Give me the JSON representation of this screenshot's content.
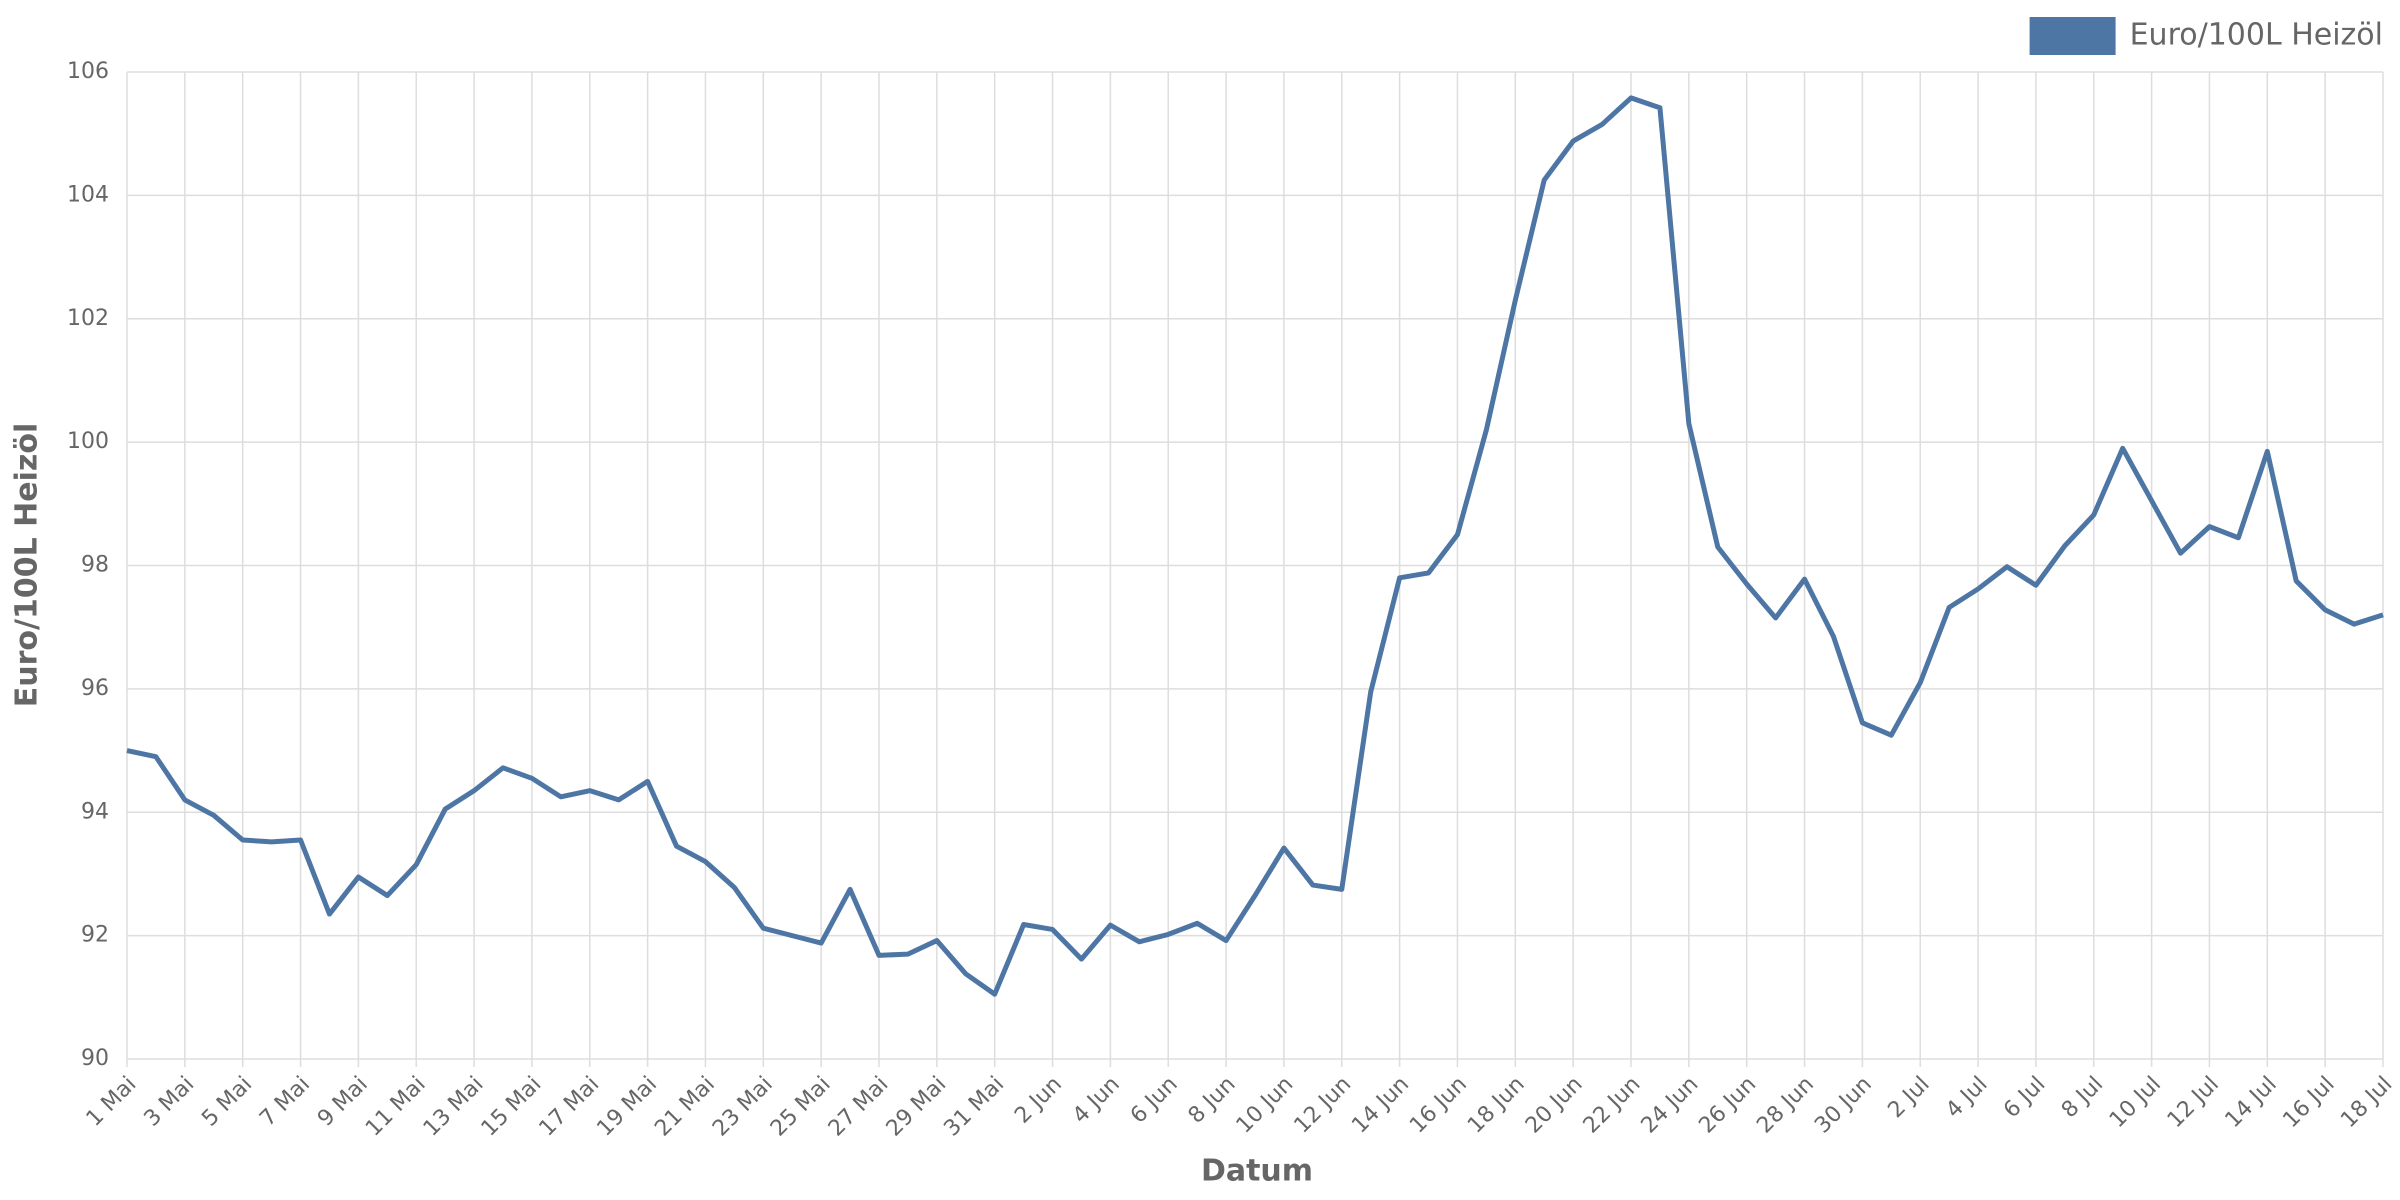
{
  "chart_data": {
    "type": "line",
    "x_label": "Datum",
    "y_label": "Euro/100L Heizöl",
    "categories": [
      "1 Mai",
      null,
      "3 Mai",
      null,
      "5 Mai",
      null,
      "7 Mai",
      null,
      "9 Mai",
      null,
      "11 Mai",
      null,
      "13 Mai",
      null,
      "15 Mai",
      null,
      "17 Mai",
      null,
      "19 Mai",
      null,
      "21 Mai",
      null,
      "23 Mai",
      null,
      "25 Mai",
      null,
      "27 Mai",
      null,
      "29 Mai",
      null,
      "31 Mai",
      null,
      "2 Jun",
      null,
      "4 Jun",
      null,
      "6 Jun",
      null,
      "8 Jun",
      null,
      "10 Jun",
      null,
      "12 Jun",
      null,
      "14 Jun",
      null,
      "16 Jun",
      null,
      "18 Jun",
      null,
      "20 Jun",
      null,
      "22 Jun",
      null,
      "24 Jun",
      null,
      "26 Jun",
      null,
      "28 Jun",
      null,
      "30 Jun",
      null,
      "2 Jul",
      null,
      "4 Jul",
      null,
      "6 Jul",
      null,
      "8 Jul",
      null,
      "10 Jul",
      null,
      "12 Jul",
      null,
      "14 Jul",
      null,
      "16 Jul",
      null,
      "18 Jul"
    ],
    "series": [
      {
        "name": "Euro/100L Heizöl",
        "color": "#4e76a5",
        "values": [
          95.0,
          94.9,
          94.2,
          93.95,
          93.55,
          93.52,
          93.55,
          92.35,
          92.95,
          92.65,
          93.15,
          94.05,
          94.35,
          94.72,
          94.55,
          94.25,
          94.35,
          94.2,
          94.5,
          93.45,
          93.2,
          92.78,
          92.12,
          92.0,
          91.88,
          92.75,
          91.68,
          91.7,
          91.92,
          91.38,
          91.05,
          92.18,
          92.1,
          91.62,
          92.17,
          91.9,
          92.02,
          92.2,
          91.92,
          92.65,
          93.42,
          92.82,
          92.75,
          95.95,
          97.8,
          97.88,
          98.5,
          100.2,
          102.3,
          104.25,
          104.88,
          105.15,
          105.58,
          105.42,
          100.3,
          98.3,
          97.7,
          97.15,
          97.78,
          96.85,
          95.45,
          95.25,
          96.1,
          97.32,
          97.62,
          97.98,
          97.68,
          98.32,
          98.82,
          99.9,
          99.05,
          98.2,
          98.63,
          98.45,
          99.85,
          97.75,
          97.28,
          97.05,
          97.2
        ]
      }
    ],
    "ylim": [
      90,
      106
    ],
    "yticks": [
      90,
      92,
      94,
      96,
      98,
      100,
      102,
      104,
      106
    ],
    "grid": true,
    "legend": "top-right"
  }
}
